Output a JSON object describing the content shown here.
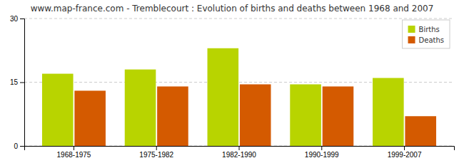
{
  "chart_data": {
    "type": "bar",
    "title": "www.map-france.com - Tremblecourt : Evolution of births and deaths between 1968 and 2007",
    "categories": [
      "1968-1975",
      "1975-1982",
      "1982-1990",
      "1990-1999",
      "1999-2007"
    ],
    "series": [
      {
        "name": "Births",
        "color": "#b8d400",
        "values": [
          17,
          18,
          23,
          14.5,
          16
        ]
      },
      {
        "name": "Deaths",
        "color": "#d45a00",
        "values": [
          13,
          14,
          14.5,
          14,
          7
        ]
      }
    ],
    "ylim": [
      0,
      30
    ],
    "yticks": [
      0,
      15,
      30
    ],
    "grid": true,
    "legend": "upper right"
  }
}
